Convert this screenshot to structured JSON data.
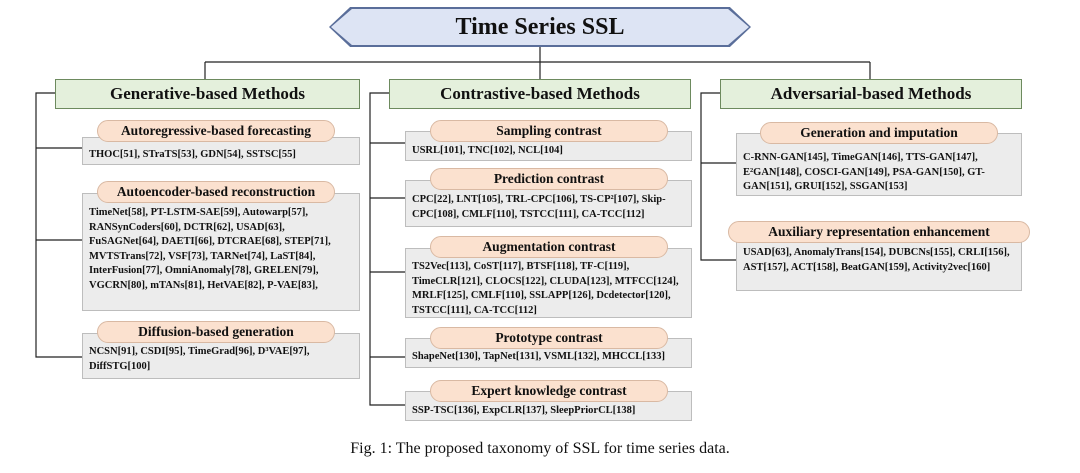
{
  "title": "Time Series SSL",
  "categories": [
    {
      "label": "Generative-based Methods",
      "subcategories": [
        {
          "label": "Autoregressive-based forecasting",
          "text": "THOC[51], STraTS[53], GDN[54], SSTSC[55]"
        },
        {
          "label": "Autoencoder-based reconstruction",
          "text": "TimeNet[58], PT-LSTM-SAE[59], Autowarp[57], RANSynCoders[60], DCTR[62], USAD[63], FuSAGNet[64], DAETI[66], DTCRAE[68], STEP[71], MVTSTrans[72], VSF[73], TARNet[74], LaST[84], InterFusion[77], OmniAnomaly[78], GRELEN[79], VGCRN[80], mTANs[81], HetVAE[82], P-VAE[83],"
        },
        {
          "label": "Diffusion-based generation",
          "text": "NCSN[91], CSDI[95],  TimeGrad[96], D³VAE[97], DiffSTG[100]"
        }
      ]
    },
    {
      "label": "Contrastive-based Methods",
      "subcategories": [
        {
          "label": "Sampling contrast",
          "text": "USRL[101], TNC[102], NCL[104]"
        },
        {
          "label": "Prediction contrast",
          "text": "CPC[22], LNT[105], TRL-CPC[106], TS-CP²[107], Skip-CPC[108], CMLF[110], TSTCC[111], CA-TCC[112]"
        },
        {
          "label": "Augmentation contrast",
          "text": "TS2Vec[113], CoST[117], BTSF[118], TF-C[119], TimeCLR[121], CLOCS[122], CLUDA[123], MTFCC[124], MRLF[125], CMLF[110], SSLAPP[126], Dcdetector[120], TSTCC[111], CA-TCC[112]"
        },
        {
          "label": "Prototype contrast",
          "text": "ShapeNet[130], TapNet[131], VSML[132], MHCCL[133]"
        },
        {
          "label": "Expert knowledge contrast",
          "text": "SSP-TSC[136], ExpCLR[137], SleepPriorCL[138]"
        }
      ]
    },
    {
      "label": "Adversarial-based Methods",
      "subcategories": [
        {
          "label": "Generation and imputation",
          "text": "C-RNN-GAN[145], TimeGAN[146], TTS-GAN[147], E²GAN[148], COSCI-GAN[149], PSA-GAN[150], GT-GAN[151], GRUI[152], SSGAN[153]"
        },
        {
          "label": "Auxiliary representation enhancement",
          "text": "USAD[63], AnomalyTrans[154], DUBCNs[155], CRLI[156], AST[157], ACT[158], BeatGAN[159], Activity2vec[160]"
        }
      ]
    }
  ],
  "caption": "Fig. 1: The proposed taxonomy of SSL for time series data."
}
